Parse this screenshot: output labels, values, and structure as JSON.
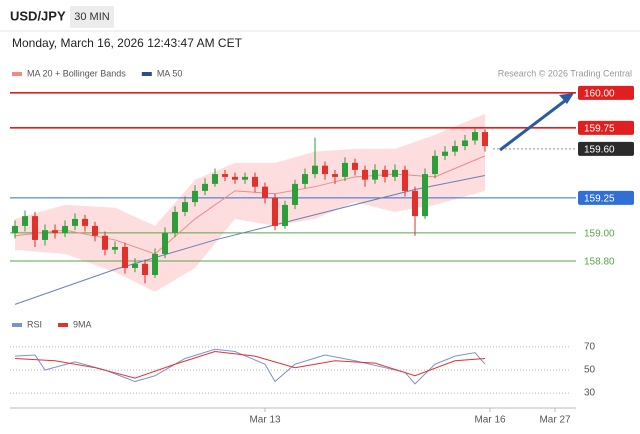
{
  "chart_data": {
    "type": "candlestick",
    "title": "USD/JPY",
    "interval": "30 MIN",
    "subtitle": "Monday, March 16, 2026 12:43:47 AM CET",
    "source": "Research © 2026 Trading Central",
    "xlim": [
      -0.5,
      55.5
    ],
    "xticks": [
      {
        "value": 25,
        "label": "Mar 13"
      },
      {
        "value": 47.5,
        "label": "Mar 16"
      },
      {
        "value": 54,
        "label": "Mar 27"
      }
    ],
    "ylim": [
      158.45,
      160.17
    ],
    "up_color": "#2e9e3a",
    "down_color": "#e0312a",
    "open": [
      159.0,
      159.05,
      159.12,
      158.95,
      159.02,
      159.0,
      159.05,
      159.1,
      159.05,
      158.98,
      158.88,
      158.9,
      158.75,
      158.78,
      158.7,
      158.85,
      159.0,
      159.15,
      159.22,
      159.3,
      159.35,
      159.42,
      159.4,
      159.38,
      159.4,
      159.33,
      159.25,
      159.05,
      159.2,
      159.35,
      159.42,
      159.48,
      159.42,
      159.4,
      159.5,
      159.45,
      159.38,
      159.45,
      159.4,
      159.45,
      159.3,
      159.12,
      159.42,
      159.55,
      159.58,
      159.62,
      159.66,
      159.72
    ],
    "high": [
      159.09,
      159.16,
      159.15,
      159.06,
      159.06,
      159.09,
      159.14,
      159.13,
      159.08,
      159.01,
      158.94,
      158.93,
      158.82,
      158.81,
      158.89,
      159.04,
      159.19,
      159.26,
      159.34,
      159.39,
      159.46,
      159.45,
      159.43,
      159.43,
      159.43,
      159.36,
      159.28,
      159.23,
      159.38,
      159.46,
      159.68,
      159.51,
      159.45,
      159.54,
      159.53,
      159.48,
      159.49,
      159.48,
      159.49,
      159.48,
      159.33,
      159.46,
      159.59,
      159.62,
      159.66,
      159.7,
      159.75,
      159.74
    ],
    "low": [
      158.96,
      159.01,
      158.9,
      158.91,
      158.96,
      158.97,
      159.02,
      159.01,
      158.94,
      158.84,
      158.85,
      158.71,
      158.72,
      158.64,
      158.68,
      158.82,
      158.97,
      159.12,
      159.19,
      159.27,
      159.33,
      159.37,
      159.35,
      159.35,
      159.29,
      159.21,
      159.02,
      159.03,
      159.17,
      159.32,
      159.39,
      159.38,
      159.35,
      159.37,
      159.41,
      159.33,
      159.35,
      159.36,
      159.37,
      159.26,
      158.98,
      159.1,
      159.39,
      159.52,
      159.55,
      159.59,
      159.63,
      159.58
    ],
    "close": [
      159.05,
      159.12,
      158.95,
      159.02,
      159.0,
      159.05,
      159.1,
      159.05,
      158.98,
      158.88,
      158.9,
      158.75,
      158.78,
      158.7,
      158.85,
      159.0,
      159.15,
      159.22,
      159.3,
      159.35,
      159.42,
      159.4,
      159.38,
      159.4,
      159.33,
      159.25,
      159.05,
      159.2,
      159.35,
      159.42,
      159.48,
      159.42,
      159.4,
      159.5,
      159.45,
      159.38,
      159.45,
      159.4,
      159.45,
      159.3,
      159.12,
      159.42,
      159.55,
      159.58,
      159.62,
      159.66,
      159.72,
      159.62
    ],
    "series": [
      {
        "name": "MA 20 + Bollinger Bands",
        "color": "#f08a8a",
        "band_color": "#fdd5d5",
        "x": [
          0,
          5,
          10,
          14,
          18,
          22,
          26,
          30,
          34,
          38,
          42,
          47
        ],
        "values": [
          158.98,
          159.02,
          158.95,
          158.85,
          159.1,
          159.3,
          159.28,
          159.33,
          159.4,
          159.42,
          159.4,
          159.55
        ],
        "upper": [
          159.1,
          159.2,
          159.18,
          159.05,
          159.38,
          159.5,
          159.5,
          159.58,
          159.6,
          159.6,
          159.7,
          159.85
        ],
        "lower": [
          158.88,
          158.85,
          158.72,
          158.58,
          158.75,
          159.1,
          159.05,
          159.1,
          159.22,
          159.15,
          159.2,
          159.3
        ]
      },
      {
        "name": "MA 50",
        "color": "#6a80b8",
        "legend_color": "#2c4f8c",
        "x": [
          0,
          10,
          20,
          30,
          40,
          47
        ],
        "values": [
          158.49,
          158.74,
          158.95,
          159.13,
          159.31,
          159.41
        ]
      }
    ],
    "levels": [
      {
        "value": 160,
        "label": "160.00",
        "color": "#e01f1f",
        "box": true,
        "dash": false
      },
      {
        "value": 159.75,
        "label": "159.75",
        "color": "#e01f1f",
        "box": true,
        "dash": false
      },
      {
        "value": 159.6,
        "label": "159.60",
        "color": "#2b2b2b",
        "box": true,
        "dash": true
      },
      {
        "value": 159.25,
        "label": "159.25",
        "color": "#2f6fd6",
        "box": true,
        "dash": false
      },
      {
        "value": 159,
        "label": "159.00",
        "color": "#5aa64a",
        "box": false,
        "dash": false
      },
      {
        "value": 158.8,
        "label": "158.80",
        "color": "#5aa64a",
        "box": false,
        "dash": false
      }
    ],
    "rsi": {
      "ylim": [
        24,
        76
      ],
      "yticks": [
        30,
        50,
        70
      ],
      "series": [
        {
          "name": "RSI",
          "color": "#7b93d6",
          "x": [
            0,
            2,
            3,
            6,
            9,
            12,
            14,
            17,
            20,
            22,
            25,
            26,
            28,
            31,
            34,
            37,
            39,
            40,
            42,
            44,
            46,
            47
          ],
          "values": [
            62,
            63,
            50,
            57,
            50,
            40,
            45,
            60,
            68,
            66,
            55,
            40,
            55,
            63,
            58,
            52,
            48,
            38,
            55,
            62,
            65,
            55
          ]
        },
        {
          "name": "9MA",
          "color": "#e53030",
          "x": [
            0,
            4,
            8,
            12,
            16,
            20,
            24,
            28,
            32,
            36,
            40,
            44,
            47
          ],
          "values": [
            60,
            58,
            52,
            43,
            55,
            66,
            62,
            52,
            58,
            56,
            45,
            58,
            60
          ]
        }
      ]
    }
  }
}
